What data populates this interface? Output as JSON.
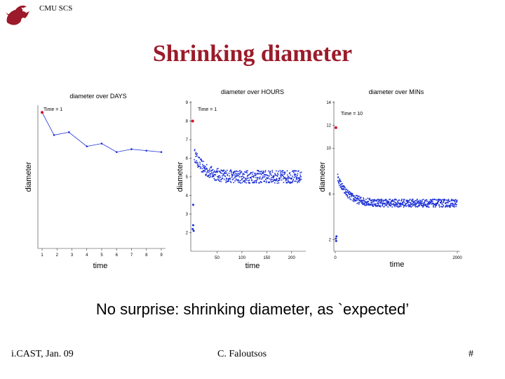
{
  "header": {
    "org": "CMU SCS",
    "title": "Shrinking diameter"
  },
  "caption": "No surprise: shrinking diameter, as `expected’",
  "footer": {
    "left": "i.CAST, Jan. 09",
    "center": "C. Faloutsos",
    "right": "#"
  },
  "colors": {
    "title": "#9b1b2a",
    "series": "#1a2fd6",
    "highlight": "#d4142a"
  },
  "chart_data": [
    {
      "type": "line",
      "title": "diameter over DAYS",
      "xlabel": "time",
      "ylabel": "diameter",
      "xlim": [
        1,
        9
      ],
      "ylim": [
        1,
        6
      ],
      "x": [
        1,
        1.8,
        2.8,
        4,
        5,
        6,
        7,
        8,
        9
      ],
      "y": [
        5.8,
        5.0,
        5.1,
        4.6,
        4.7,
        4.4,
        4.5,
        4.45,
        4.4
      ],
      "annotation": "Time = 1"
    },
    {
      "type": "scatter",
      "title": "diameter over HOURS",
      "xlabel": "time",
      "ylabel": "diameter",
      "xlim": [
        0,
        220
      ],
      "ylim": [
        1,
        9
      ],
      "yticks": [
        2,
        3,
        4,
        5,
        6,
        7,
        8,
        9
      ],
      "xticks": [
        50,
        100,
        150,
        200
      ],
      "annotation": "Time = 1",
      "initial_point": [
        1,
        8.0
      ],
      "early_points": [
        [
          1,
          2.2
        ],
        [
          2,
          2.4
        ],
        [
          3,
          2.1
        ],
        [
          2,
          3.5
        ]
      ],
      "decay": {
        "start": 6.5,
        "end": 5.0,
        "rate": 0.05
      }
    },
    {
      "type": "scatter",
      "title": "diameter over MINs",
      "xlabel": "time",
      "ylabel": "diameter",
      "xlim": [
        0,
        2000
      ],
      "ylim": [
        1,
        14
      ],
      "yticks": [
        2,
        6,
        10,
        12,
        14
      ],
      "xticks": [
        0,
        2000
      ],
      "annotation": "Time = 10",
      "initial_point": [
        10,
        11.8
      ],
      "early_points": [
        [
          10,
          2.1
        ],
        [
          20,
          2.3
        ],
        [
          15,
          1.9
        ]
      ],
      "decay": {
        "start": 8.0,
        "end": 5.2,
        "rate": 0.006
      }
    }
  ]
}
